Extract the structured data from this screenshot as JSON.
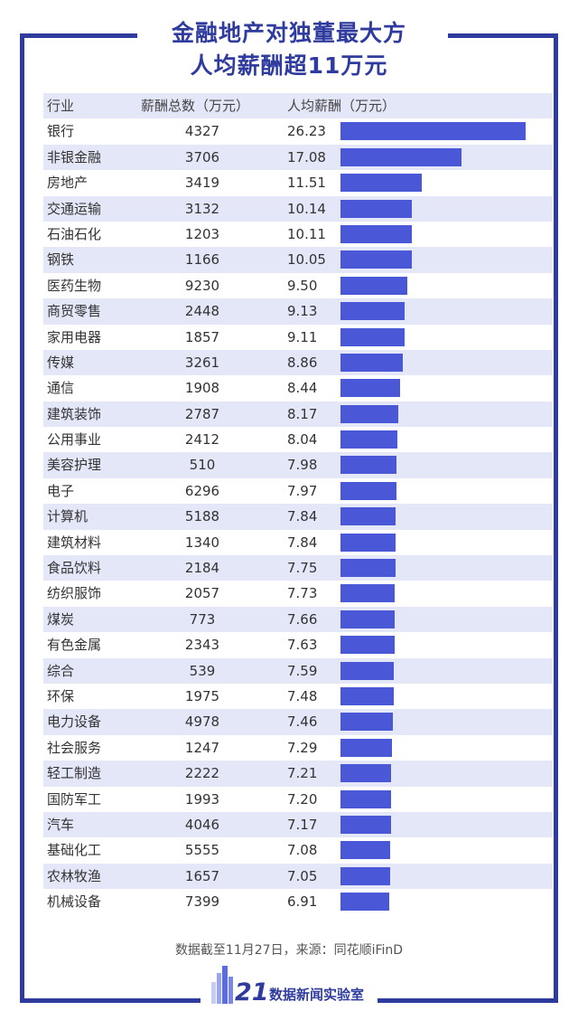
{
  "title": {
    "line1": "金融地产对独董最大方",
    "line2": "人均薪酬超11万元"
  },
  "colors": {
    "frame": "#2f3c9e",
    "bar": "#4a57d6",
    "stripe": "#e4e7f8"
  },
  "table": {
    "headers": [
      "行业",
      "薪酬总数（万元）",
      "人均薪酬（万元）"
    ]
  },
  "chart_data": {
    "type": "bar",
    "orientation": "horizontal",
    "series_value_label": "人均薪酬（万元）",
    "rows": [
      {
        "industry": "银行",
        "total": "4327",
        "avg": 26.23,
        "avg_text": "26.23"
      },
      {
        "industry": "非银金融",
        "total": "3706",
        "avg": 17.08,
        "avg_text": "17.08"
      },
      {
        "industry": "房地产",
        "total": "3419",
        "avg": 11.51,
        "avg_text": "11.51"
      },
      {
        "industry": "交通运输",
        "total": "3132",
        "avg": 10.14,
        "avg_text": "10.14"
      },
      {
        "industry": "石油石化",
        "total": "1203",
        "avg": 10.11,
        "avg_text": "10.11"
      },
      {
        "industry": "钢铁",
        "total": "1166",
        "avg": 10.05,
        "avg_text": "10.05"
      },
      {
        "industry": "医药生物",
        "total": "9230",
        "avg": 9.5,
        "avg_text": "9.50"
      },
      {
        "industry": "商贸零售",
        "total": "2448",
        "avg": 9.13,
        "avg_text": "9.13"
      },
      {
        "industry": "家用电器",
        "total": "1857",
        "avg": 9.11,
        "avg_text": "9.11"
      },
      {
        "industry": "传媒",
        "total": "3261",
        "avg": 8.86,
        "avg_text": "8.86"
      },
      {
        "industry": "通信",
        "total": "1908",
        "avg": 8.44,
        "avg_text": "8.44"
      },
      {
        "industry": "建筑装饰",
        "total": "2787",
        "avg": 8.17,
        "avg_text": "8.17"
      },
      {
        "industry": "公用事业",
        "total": "2412",
        "avg": 8.04,
        "avg_text": "8.04"
      },
      {
        "industry": "美容护理",
        "total": "510",
        "avg": 7.98,
        "avg_text": "7.98"
      },
      {
        "industry": "电子",
        "total": "6296",
        "avg": 7.97,
        "avg_text": "7.97"
      },
      {
        "industry": "计算机",
        "total": "5188",
        "avg": 7.84,
        "avg_text": "7.84"
      },
      {
        "industry": "建筑材料",
        "total": "1340",
        "avg": 7.84,
        "avg_text": "7.84"
      },
      {
        "industry": "食品饮料",
        "total": "2184",
        "avg": 7.75,
        "avg_text": "7.75"
      },
      {
        "industry": "纺织服饰",
        "total": "2057",
        "avg": 7.73,
        "avg_text": "7.73"
      },
      {
        "industry": "煤炭",
        "total": "773",
        "avg": 7.66,
        "avg_text": "7.66"
      },
      {
        "industry": "有色金属",
        "total": "2343",
        "avg": 7.63,
        "avg_text": "7.63"
      },
      {
        "industry": "综合",
        "total": "539",
        "avg": 7.59,
        "avg_text": "7.59"
      },
      {
        "industry": "环保",
        "total": "1975",
        "avg": 7.48,
        "avg_text": "7.48"
      },
      {
        "industry": "电力设备",
        "total": "4978",
        "avg": 7.46,
        "avg_text": "7.46"
      },
      {
        "industry": "社会服务",
        "total": "1247",
        "avg": 7.29,
        "avg_text": "7.29"
      },
      {
        "industry": "轻工制造",
        "total": "2222",
        "avg": 7.21,
        "avg_text": "7.21"
      },
      {
        "industry": "国防军工",
        "total": "1993",
        "avg": 7.2,
        "avg_text": "7.20"
      },
      {
        "industry": "汽车",
        "total": "4046",
        "avg": 7.17,
        "avg_text": "7.17"
      },
      {
        "industry": "基础化工",
        "total": "5555",
        "avg": 7.08,
        "avg_text": "7.08"
      },
      {
        "industry": "农林牧渔",
        "total": "1657",
        "avg": 7.05,
        "avg_text": "7.05"
      },
      {
        "industry": "机械设备",
        "total": "7399",
        "avg": 6.91,
        "avg_text": "6.91"
      }
    ]
  },
  "footnote": "数据截至11月27日，来源：同花顺iFinD",
  "logo": {
    "number": "21",
    "text": "数据新闻实验室"
  }
}
